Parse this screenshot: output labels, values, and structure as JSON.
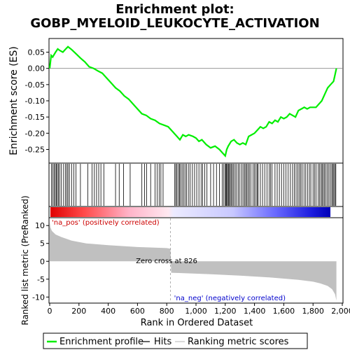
{
  "chart_data": {
    "type": "line",
    "title_line1": "Enrichment plot:",
    "title_line2": "GOBP_MYELOID_LEUKOCYTE_ACTIVATION",
    "es_ylabel": "Enrichment score (ES)",
    "rank_ylabel": "Ranked list metric (PreRanked)",
    "xlabel": "Rank in Ordered Dataset",
    "xlim": [
      0,
      2000
    ],
    "es_ylim": [
      -0.29,
      0.09
    ],
    "rank_ylim": [
      -11.5,
      12
    ],
    "x_ticks": [
      "0",
      "200",
      "400",
      "600",
      "800",
      "1,000",
      "1,200",
      "1,400",
      "1,600",
      "1,800",
      "2,000"
    ],
    "x_tick_values": [
      0,
      200,
      400,
      600,
      800,
      1000,
      1200,
      1400,
      1600,
      1800,
      2000
    ],
    "es_ticks": [
      "0.05",
      "0.00",
      "-0.05",
      "-0.10",
      "-0.15",
      "-0.20",
      "-0.25"
    ],
    "es_tick_values": [
      0.05,
      0.0,
      -0.05,
      -0.1,
      -0.15,
      -0.2,
      -0.25
    ],
    "rank_ticks": [
      "10",
      "5",
      "0",
      "-5",
      "-10"
    ],
    "rank_tick_values": [
      10,
      5,
      0,
      -5,
      -10
    ],
    "n_ranks": 1960,
    "zero_cross_rank": 826,
    "zero_cross_label": "Zero cross at 826",
    "pos_label": "'na_pos' (positively correlated)",
    "neg_label": "'na_neg' (negatively correlated)",
    "legend": [
      "Enrichment profile",
      "Hits",
      "Ranking metric scores"
    ],
    "colors": {
      "es_line": "#00ee00",
      "metric_fill": "#c0c0c0",
      "pos_text": "#cc0000",
      "neg_text": "#0000cc",
      "hits": "#000000"
    },
    "es_curve": {
      "x": [
        0,
        10,
        20,
        40,
        55,
        70,
        90,
        110,
        125,
        150,
        180,
        210,
        240,
        270,
        300,
        330,
        360,
        390,
        420,
        450,
        480,
        510,
        540,
        570,
        600,
        630,
        660,
        690,
        720,
        750,
        780,
        810,
        840,
        870,
        890,
        910,
        930,
        950,
        980,
        1000,
        1020,
        1040,
        1070,
        1100,
        1130,
        1160,
        1180,
        1200,
        1210,
        1220,
        1240,
        1260,
        1280,
        1300,
        1320,
        1340,
        1360,
        1380,
        1400,
        1420,
        1440,
        1460,
        1480,
        1500,
        1520,
        1540,
        1560,
        1580,
        1600,
        1620,
        1640,
        1660,
        1680,
        1700,
        1720,
        1740,
        1760,
        1780,
        1800,
        1820,
        1840,
        1860,
        1880,
        1900,
        1920,
        1940,
        1950,
        1960
      ],
      "y": [
        0.0,
        0.04,
        0.035,
        0.05,
        0.06,
        0.055,
        0.05,
        0.06,
        0.067,
        0.058,
        0.045,
        0.032,
        0.02,
        0.005,
        0.0,
        -0.008,
        -0.015,
        -0.03,
        -0.045,
        -0.06,
        -0.07,
        -0.085,
        -0.095,
        -0.11,
        -0.125,
        -0.14,
        -0.145,
        -0.155,
        -0.16,
        -0.17,
        -0.175,
        -0.18,
        -0.195,
        -0.21,
        -0.22,
        -0.205,
        -0.21,
        -0.205,
        -0.21,
        -0.215,
        -0.225,
        -0.22,
        -0.235,
        -0.245,
        -0.24,
        -0.25,
        -0.26,
        -0.27,
        -0.25,
        -0.24,
        -0.225,
        -0.22,
        -0.23,
        -0.235,
        -0.23,
        -0.235,
        -0.21,
        -0.205,
        -0.2,
        -0.19,
        -0.18,
        -0.185,
        -0.18,
        -0.165,
        -0.17,
        -0.16,
        -0.165,
        -0.15,
        -0.155,
        -0.15,
        -0.14,
        -0.145,
        -0.15,
        -0.13,
        -0.125,
        -0.12,
        -0.125,
        -0.12,
        -0.12,
        -0.12,
        -0.11,
        -0.1,
        -0.08,
        -0.06,
        -0.05,
        -0.04,
        -0.02,
        0.0
      ]
    },
    "metric_curve": {
      "x": [
        0,
        5,
        15,
        40,
        80,
        150,
        250,
        400,
        600,
        800,
        826,
        830,
        900,
        1100,
        1300,
        1500,
        1700,
        1800,
        1850,
        1900,
        1930,
        1950,
        1960
      ],
      "y": [
        11,
        9.5,
        8.5,
        7.5,
        6.8,
        5.8,
        5.0,
        4.5,
        4.0,
        3.7,
        3.5,
        -3.2,
        -3.3,
        -3.6,
        -4.0,
        -4.5,
        -5.2,
        -5.7,
        -6.2,
        -6.9,
        -7.8,
        -9.2,
        -11
      ]
    },
    "hits": [
      12,
      22,
      30,
      38,
      46,
      52,
      60,
      68,
      80,
      95,
      108,
      118,
      125,
      135,
      150,
      165,
      180,
      210,
      260,
      290,
      305,
      320,
      335,
      350,
      370,
      450,
      475,
      505,
      550,
      630,
      648,
      662,
      690,
      720,
      735,
      748,
      760,
      775,
      855,
      862,
      870,
      880,
      888,
      895,
      905,
      915,
      925,
      935,
      948,
      960,
      975,
      990,
      1005,
      1020,
      1035,
      1045,
      1060,
      1075,
      1100,
      1120,
      1140,
      1160,
      1180,
      1190,
      1200,
      1205,
      1210,
      1215,
      1222,
      1228,
      1235,
      1242,
      1250,
      1258,
      1268,
      1278,
      1290,
      1300,
      1312,
      1322,
      1332,
      1340,
      1348,
      1356,
      1365,
      1375,
      1390,
      1400,
      1410,
      1418,
      1425,
      1440,
      1455,
      1470,
      1485,
      1500,
      1510,
      1520,
      1540,
      1555,
      1570,
      1585,
      1600,
      1615,
      1630,
      1645,
      1660,
      1672,
      1684,
      1695,
      1705,
      1715,
      1725,
      1738,
      1750,
      1762,
      1775,
      1785,
      1800,
      1810,
      1820,
      1835,
      1845,
      1855,
      1862,
      1870,
      1878,
      1888,
      1898,
      1908,
      1918,
      1928,
      1935,
      1942,
      1950,
      1956
    ]
  }
}
